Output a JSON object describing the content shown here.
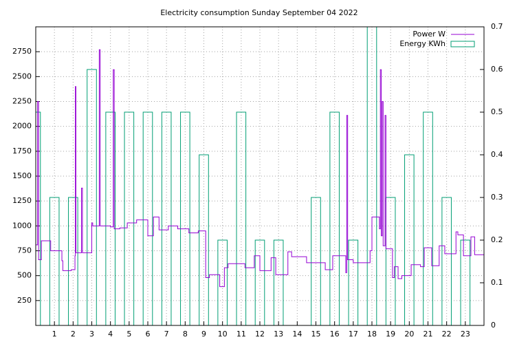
{
  "chart_data": {
    "type": "line",
    "step": true,
    "title": "Electricity consumption Sunday September 04 2022",
    "xlim": [
      0,
      24
    ],
    "xticks": [
      1,
      2,
      3,
      4,
      5,
      6,
      7,
      8,
      9,
      10,
      11,
      12,
      13,
      14,
      15,
      16,
      17,
      18,
      19,
      20,
      21,
      22,
      23
    ],
    "ylim": [
      0,
      3000
    ],
    "yticks": [
      250,
      500,
      750,
      1000,
      1250,
      1500,
      1750,
      2000,
      2250,
      2500,
      2750
    ],
    "y2lim": [
      0,
      0.7
    ],
    "y2ticks": [
      0,
      0.1,
      0.2,
      0.3,
      0.4,
      0.5,
      0.6,
      0.7
    ],
    "grid": true,
    "legend": "top-right",
    "series": [
      {
        "name": "Power W",
        "color": "#9400d3",
        "type": "line",
        "x": [
          0,
          0.1,
          0.15,
          0.3,
          0.8,
          1.4,
          1.45,
          1.9,
          2.1,
          2.12,
          2.15,
          2.45,
          2.5,
          3.0,
          3.05,
          3.4,
          3.45,
          4.0,
          4.15,
          4.2,
          4.5,
          4.9,
          5.4,
          6.0,
          6.3,
          6.6,
          7.1,
          7.6,
          8.2,
          8.7,
          9.1,
          9.3,
          9.85,
          10.1,
          10.3,
          11.2,
          11.7,
          12.0,
          12.6,
          12.85,
          13.5,
          13.7,
          14.5,
          15.5,
          15.9,
          16.6,
          16.65,
          16.7,
          17.0,
          17.9,
          18.0,
          18.4,
          18.45,
          18.5,
          18.55,
          18.6,
          18.7,
          18.75,
          19.1,
          19.2,
          19.4,
          19.6,
          20.1,
          20.6,
          20.8,
          21.2,
          21.6,
          21.9,
          22.5,
          22.6,
          22.9,
          23.3,
          23.5,
          24
        ],
        "values": [
          810,
          2250,
          660,
          850,
          750,
          650,
          550,
          560,
          700,
          2400,
          730,
          1380,
          730,
          1030,
          1000,
          2770,
          1000,
          990,
          2570,
          970,
          980,
          1030,
          1060,
          900,
          1090,
          960,
          1000,
          970,
          930,
          950,
          480,
          510,
          390,
          580,
          620,
          580,
          700,
          550,
          680,
          510,
          740,
          690,
          630,
          560,
          700,
          530,
          2110,
          660,
          630,
          750,
          1090,
          970,
          2570,
          900,
          2250,
          800,
          2110,
          770,
          480,
          590,
          470,
          500,
          610,
          590,
          780,
          600,
          800,
          720,
          940,
          910,
          700,
          890,
          710,
          710
        ]
      },
      {
        "name": "Energy KWh",
        "color": "#009e73",
        "type": "bar",
        "axis": "y2",
        "x": [
          0,
          1,
          2,
          3,
          4,
          5,
          6,
          7,
          8,
          9,
          10,
          11,
          12,
          13,
          14,
          15,
          16,
          17,
          18,
          19,
          20,
          21,
          22,
          23
        ],
        "values": [
          0.5,
          0.3,
          0.3,
          0.6,
          0.5,
          0.5,
          0.5,
          0.5,
          0.5,
          0.4,
          0.2,
          0.5,
          0.2,
          0.2,
          0,
          0.3,
          0.5,
          0.2,
          0.7,
          0.3,
          0.4,
          0.5,
          0.3,
          0.2
        ]
      }
    ]
  }
}
